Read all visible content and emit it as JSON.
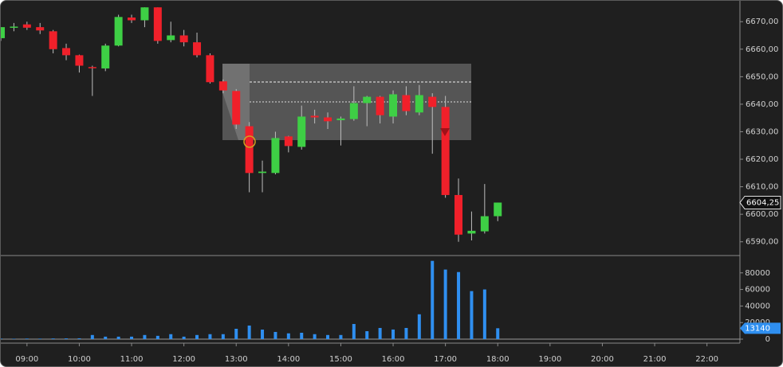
{
  "chart_data": [
    {
      "type": "candlestick",
      "x": [
        8.5,
        8.75,
        9,
        9.25,
        9.5,
        9.75,
        10,
        10.25,
        10.5,
        10.75,
        11,
        11.25,
        11.5,
        11.75,
        12,
        12.25,
        12.5,
        12.75,
        13,
        13.25,
        13.5,
        13.75,
        14,
        14.25,
        14.5,
        14.75,
        15,
        15.25,
        15.5,
        15.75,
        16,
        16.25,
        16.5,
        16.75,
        17,
        17.25,
        17.5,
        17.75,
        18
      ],
      "open": [
        6664,
        6668,
        6669,
        6668,
        6666.5,
        6660.4,
        6657.8,
        6653.5,
        6653,
        6661.3,
        6671.5,
        6670.5,
        6675.2,
        6663.3,
        6665,
        6662.5,
        6657.8,
        6648.3,
        6644.8,
        6632,
        6615,
        6615,
        6628.3,
        6624.5,
        6635.8,
        6635.2,
        6634.2,
        6634.6,
        6640.4,
        6642.7,
        6635.5,
        6643.3,
        6637,
        6642.7,
        6639,
        6607,
        6593,
        6593.8,
        6599.3
      ],
      "high": [
        6668,
        6669.5,
        6670,
        6669.5,
        6667,
        6662,
        6658,
        6654,
        6662,
        6672.5,
        6672.5,
        6675.2,
        6675.2,
        6670,
        6667,
        6666,
        6658.5,
        6649,
        6645.5,
        6633.5,
        6619.5,
        6630,
        6628.5,
        6639.5,
        6638,
        6637,
        6635.5,
        6646.5,
        6643,
        6643,
        6645,
        6646.5,
        6647,
        6644,
        6643,
        6613,
        6601,
        6611,
        6604.25
      ],
      "low": [
        6663,
        6666.5,
        6667,
        6665.5,
        6658.5,
        6656,
        6651.5,
        6643,
        6652,
        6661,
        6669.5,
        6668,
        6662,
        6662.5,
        6661,
        6657,
        6647.5,
        6644,
        6631,
        6608,
        6608,
        6614.5,
        6622.5,
        6623.5,
        6633,
        6631,
        6625,
        6634,
        6632,
        6633,
        6633,
        6636,
        6636,
        6622,
        6606,
        6590,
        6590.5,
        6593,
        6597.5
      ],
      "close": [
        6668,
        6668.2,
        6667.8,
        6666.8,
        6660,
        6657.8,
        6654,
        6653.2,
        6661.3,
        6671.7,
        6670.5,
        6675.2,
        6663,
        6665,
        6662.5,
        6657.8,
        6648,
        6645,
        6632.6,
        6615,
        6615.5,
        6627.7,
        6624.8,
        6635.5,
        6635.2,
        6633.8,
        6634.8,
        6640.4,
        6642.7,
        6636,
        6643.6,
        6637.5,
        6643.3,
        6639,
        6607,
        6592.6,
        6594,
        6599.3,
        6604.25
      ],
      "up_color": "#3ecf45",
      "down_color": "#f0202a",
      "xlim": [
        8.53,
        22.6
      ],
      "ylim": [
        6585,
        6677
      ],
      "yticks": [
        {
          "value": 6590,
          "label": "6590,00"
        },
        {
          "value": 6600,
          "label": "6600,00"
        },
        {
          "value": 6610,
          "label": "6610,00"
        },
        {
          "value": 6620,
          "label": "6620,00"
        },
        {
          "value": 6630,
          "label": "6630,00"
        },
        {
          "value": 6640,
          "label": "6640,00"
        },
        {
          "value": 6650,
          "label": "6650,00"
        },
        {
          "value": 6660,
          "label": "6660,00"
        },
        {
          "value": 6670,
          "label": "6670,00"
        }
      ],
      "last_price": {
        "value": 6604.25,
        "label": "6604,25"
      }
    },
    {
      "type": "bar",
      "x": [
        8.5,
        8.75,
        9,
        9.25,
        9.5,
        9.75,
        10,
        10.25,
        10.5,
        10.75,
        11,
        11.25,
        11.5,
        11.75,
        12,
        12.25,
        12.5,
        12.75,
        13,
        13.25,
        13.5,
        13.75,
        14,
        14.25,
        14.5,
        14.75,
        15,
        15.25,
        15.5,
        15.75,
        16,
        16.25,
        16.5,
        16.75,
        17,
        17.25,
        17.5,
        17.75,
        18
      ],
      "values": [
        600,
        500,
        700,
        600,
        800,
        900,
        1000,
        5000,
        3000,
        3000,
        3000,
        5000,
        4000,
        6000,
        3000,
        5000,
        6000,
        6000,
        12500,
        16400,
        11500,
        8700,
        7000,
        7700,
        6000,
        5000,
        5000,
        18300,
        9600,
        13500,
        11600,
        13500,
        30000,
        94500,
        84000,
        81000,
        58000,
        60000,
        13140
      ],
      "color": "#2f8ff0",
      "xlim": [
        8.53,
        22.6
      ],
      "ylim": [
        0,
        99000
      ],
      "yticks": [
        0,
        20000,
        40000,
        60000,
        80000
      ],
      "xticks": [
        {
          "value": 9,
          "label": "09:00"
        },
        {
          "value": 10,
          "label": "10:00"
        },
        {
          "value": 11,
          "label": "11:00"
        },
        {
          "value": 12,
          "label": "12:00"
        },
        {
          "value": 13,
          "label": "13:00"
        },
        {
          "value": 14,
          "label": "14:00"
        },
        {
          "value": 15,
          "label": "15:00"
        },
        {
          "value": 16,
          "label": "16:00"
        },
        {
          "value": 17,
          "label": "17:00"
        },
        {
          "value": 18,
          "label": "18:00"
        },
        {
          "value": 19,
          "label": "19:00"
        },
        {
          "value": 20,
          "label": "20:00"
        },
        {
          "value": 21,
          "label": "21:00"
        },
        {
          "value": 22,
          "label": "22:00"
        }
      ],
      "last_volume": 13140
    }
  ]
}
